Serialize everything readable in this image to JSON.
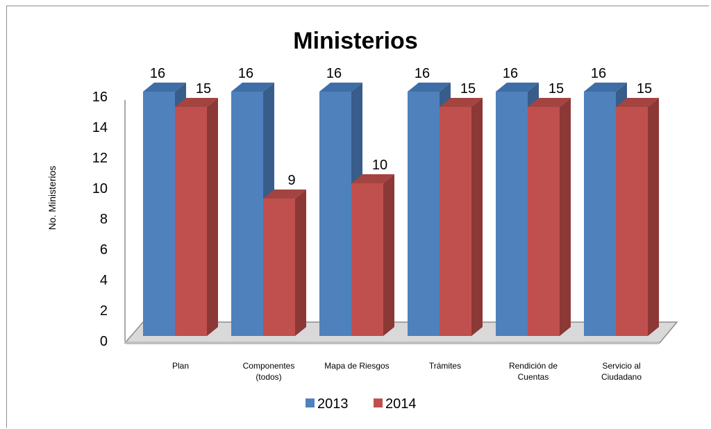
{
  "chart_data": {
    "type": "bar",
    "title": "Ministerios",
    "xlabel": "",
    "ylabel": "No. Ministerios",
    "ylim": [
      0,
      16
    ],
    "yticks": [
      "0",
      "2",
      "4",
      "6",
      "8",
      "10",
      "12",
      "14",
      "16"
    ],
    "categories": [
      [
        "Plan"
      ],
      [
        "Componentes",
        "(todos)"
      ],
      [
        "Mapa de Riesgos"
      ],
      [
        "Trámites"
      ],
      [
        "Rendición de",
        "Cuentas"
      ],
      [
        "Servicio al",
        "Ciudadano"
      ]
    ],
    "series": [
      {
        "name": "2013",
        "values": [
          16,
          16,
          16,
          16,
          16,
          16
        ],
        "color": "#4f81bd",
        "side": "#385d8a",
        "top": "#3f6ea6"
      },
      {
        "name": "2014",
        "values": [
          15,
          9,
          10,
          15,
          15,
          15
        ],
        "color": "#c0504d",
        "side": "#8c3836",
        "top": "#a34441"
      }
    ],
    "legend_position": "bottom",
    "grid": false,
    "style": "3d-column"
  }
}
